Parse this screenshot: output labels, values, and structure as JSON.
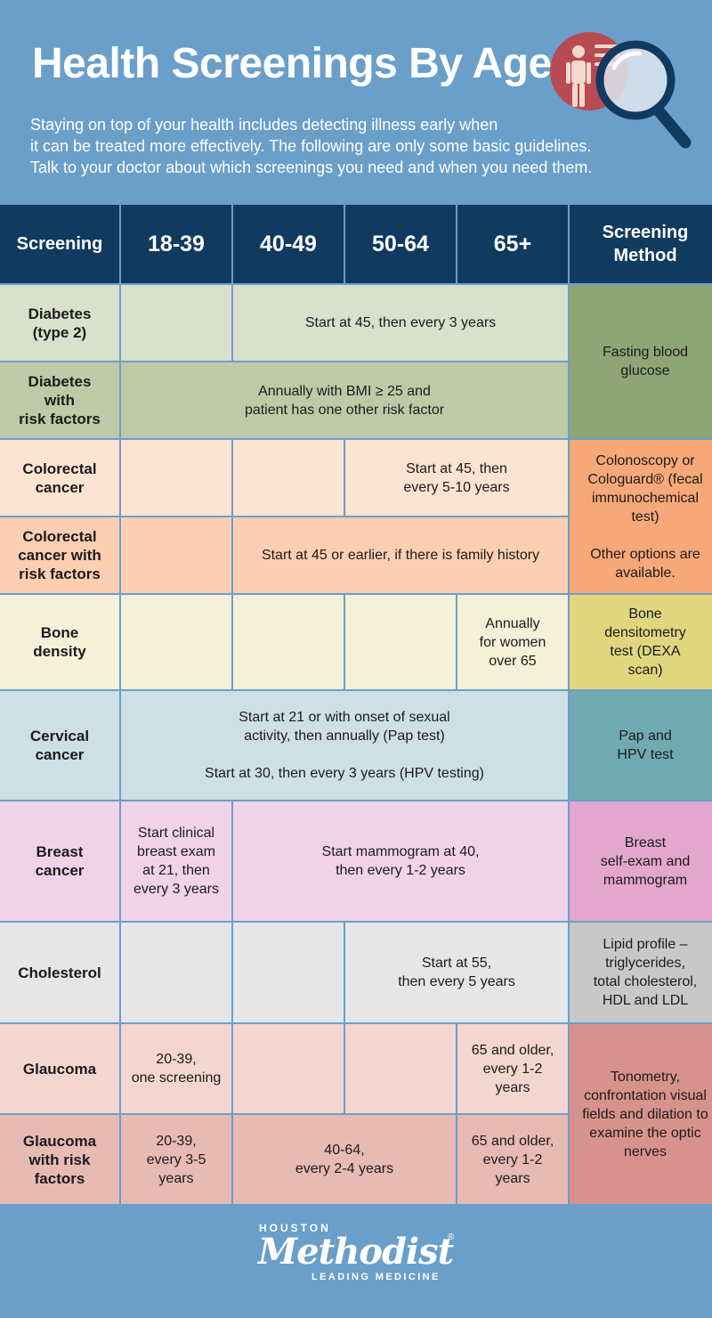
{
  "header": {
    "title": "Health Screenings By Age",
    "intro_lines": [
      "Staying on top of your health includes detecting illness early when",
      "it can be treated more effectively. The following are only some basic guidelines.",
      "Talk to your doctor about which screenings you need and when you need them."
    ]
  },
  "table": {
    "headers": {
      "screening": "Screening",
      "age_18_39": "18-39",
      "age_40_49": "40-49",
      "age_50_64": "50-64",
      "age_65_plus": "65+",
      "method": "Screening\nMethod"
    },
    "rows": {
      "diabetes": {
        "name": "Diabetes\n(type 2)",
        "guidance": "Start at 45, then every 3 years"
      },
      "diabetes_risk": {
        "name": "Diabetes\nwith\nrisk factors",
        "guidance": "Annually with BMI ≥ 25 and\npatient has one other risk factor"
      },
      "diabetes_method": "Fasting blood\nglucose",
      "colorectal": {
        "name": "Colorectal\ncancer",
        "guidance": "Start at 45, then\nevery 5-10 years"
      },
      "colorectal_risk": {
        "name": "Colorectal\ncancer with\nrisk factors",
        "guidance": "Start at 45 or earlier, if there is family history"
      },
      "colorectal_method": "Colonoscopy or\nCologuard® (fecal\nimmunochemical\ntest)\n\nOther options are\navailable.",
      "bone": {
        "name": "Bone\ndensity",
        "guidance": "Annually\nfor women\nover 65",
        "method": "Bone\ndensitometry\ntest (DEXA\nscan)"
      },
      "cervical": {
        "name": "Cervical\ncancer",
        "guidance": "Start at 21 or with onset of sexual\nactivity, then annually (Pap test)\n\nStart at 30, then every 3 years (HPV testing)",
        "method": "Pap and\nHPV test"
      },
      "breast": {
        "name": "Breast\ncancer",
        "guidance_18_39": "Start clinical\nbreast exam\nat 21, then\nevery 3 years",
        "guidance_40_plus": "Start mammogram at 40,\nthen every 1-2 years",
        "method": "Breast\nself-exam and\nmammogram"
      },
      "cholesterol": {
        "name": "Cholesterol",
        "guidance": "Start at 55,\nthen every 5 years",
        "method": "Lipid profile –\ntriglycerides,\ntotal cholesterol,\nHDL and LDL"
      },
      "glaucoma": {
        "name": "Glaucoma",
        "guidance_18_39": "20-39,\none screening",
        "guidance_65_plus": "65 and older,\nevery 1-2\nyears"
      },
      "glaucoma_risk": {
        "name": "Glaucoma\nwith risk\nfactors",
        "guidance_18_39": "20-39,\nevery 3-5\nyears",
        "guidance_40_64": "40-64,\nevery 2-4 years",
        "guidance_65_plus": "65 and older,\nevery 1-2\nyears"
      },
      "glaucoma_method": "Tonometry,\nconfrontation visual\nfields and dilation to\nexamine the optic\nnerves"
    }
  },
  "footer": {
    "top": "HOUSTON",
    "brand": "Methodist",
    "registered": "®",
    "tagline": "LEADING MEDICINE"
  },
  "colors": {
    "background": "#6a9fc9",
    "header_bar": "#103a5e",
    "diabetes": "#d9e0cc",
    "colorectal": "#fde3d2",
    "bone": "#f5f0d8",
    "cervical": "#cde0e5",
    "breast": "#f1d3e8",
    "cholesterol": "#e6e6e6",
    "glaucoma": "#f3d6d0"
  },
  "icons": [
    "person-icon",
    "magnifier-icon"
  ]
}
